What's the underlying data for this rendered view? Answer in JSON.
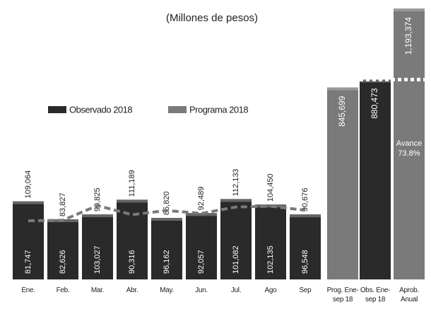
{
  "chart_data": [
    {
      "type": "bar-line",
      "title": "(Millones de pesos)",
      "categories": [
        "Ene.",
        "Feb.",
        "Mar.",
        "Abr.",
        "May.",
        "Jun.",
        "Jul.",
        "Ago",
        "Sep"
      ],
      "series": [
        {
          "name": "Observado 2018",
          "color": "#2a2a2a",
          "values": [
            109064,
            83827,
            90825,
            111189,
            85820,
            92489,
            112133,
            104450,
            90676
          ]
        },
        {
          "name": "Programa 2018",
          "color": "#7a7a7a",
          "values": [
            81747,
            82626,
            103027,
            90316,
            96162,
            92057,
            101082,
            102135,
            96548
          ]
        }
      ],
      "ylim": [
        0,
        380000
      ]
    },
    {
      "type": "bar",
      "categories": [
        "Prog. Ene-sep 18",
        "Obs. Ene-sep 18",
        "Aprob. Anual"
      ],
      "values": [
        845699,
        880473,
        1193374
      ],
      "colors": [
        "#7a7a7a",
        "#2a2a2a",
        "#7a7a7a"
      ],
      "annotation": "Avance 73.8%",
      "ylim": [
        0,
        1200000
      ]
    }
  ]
}
